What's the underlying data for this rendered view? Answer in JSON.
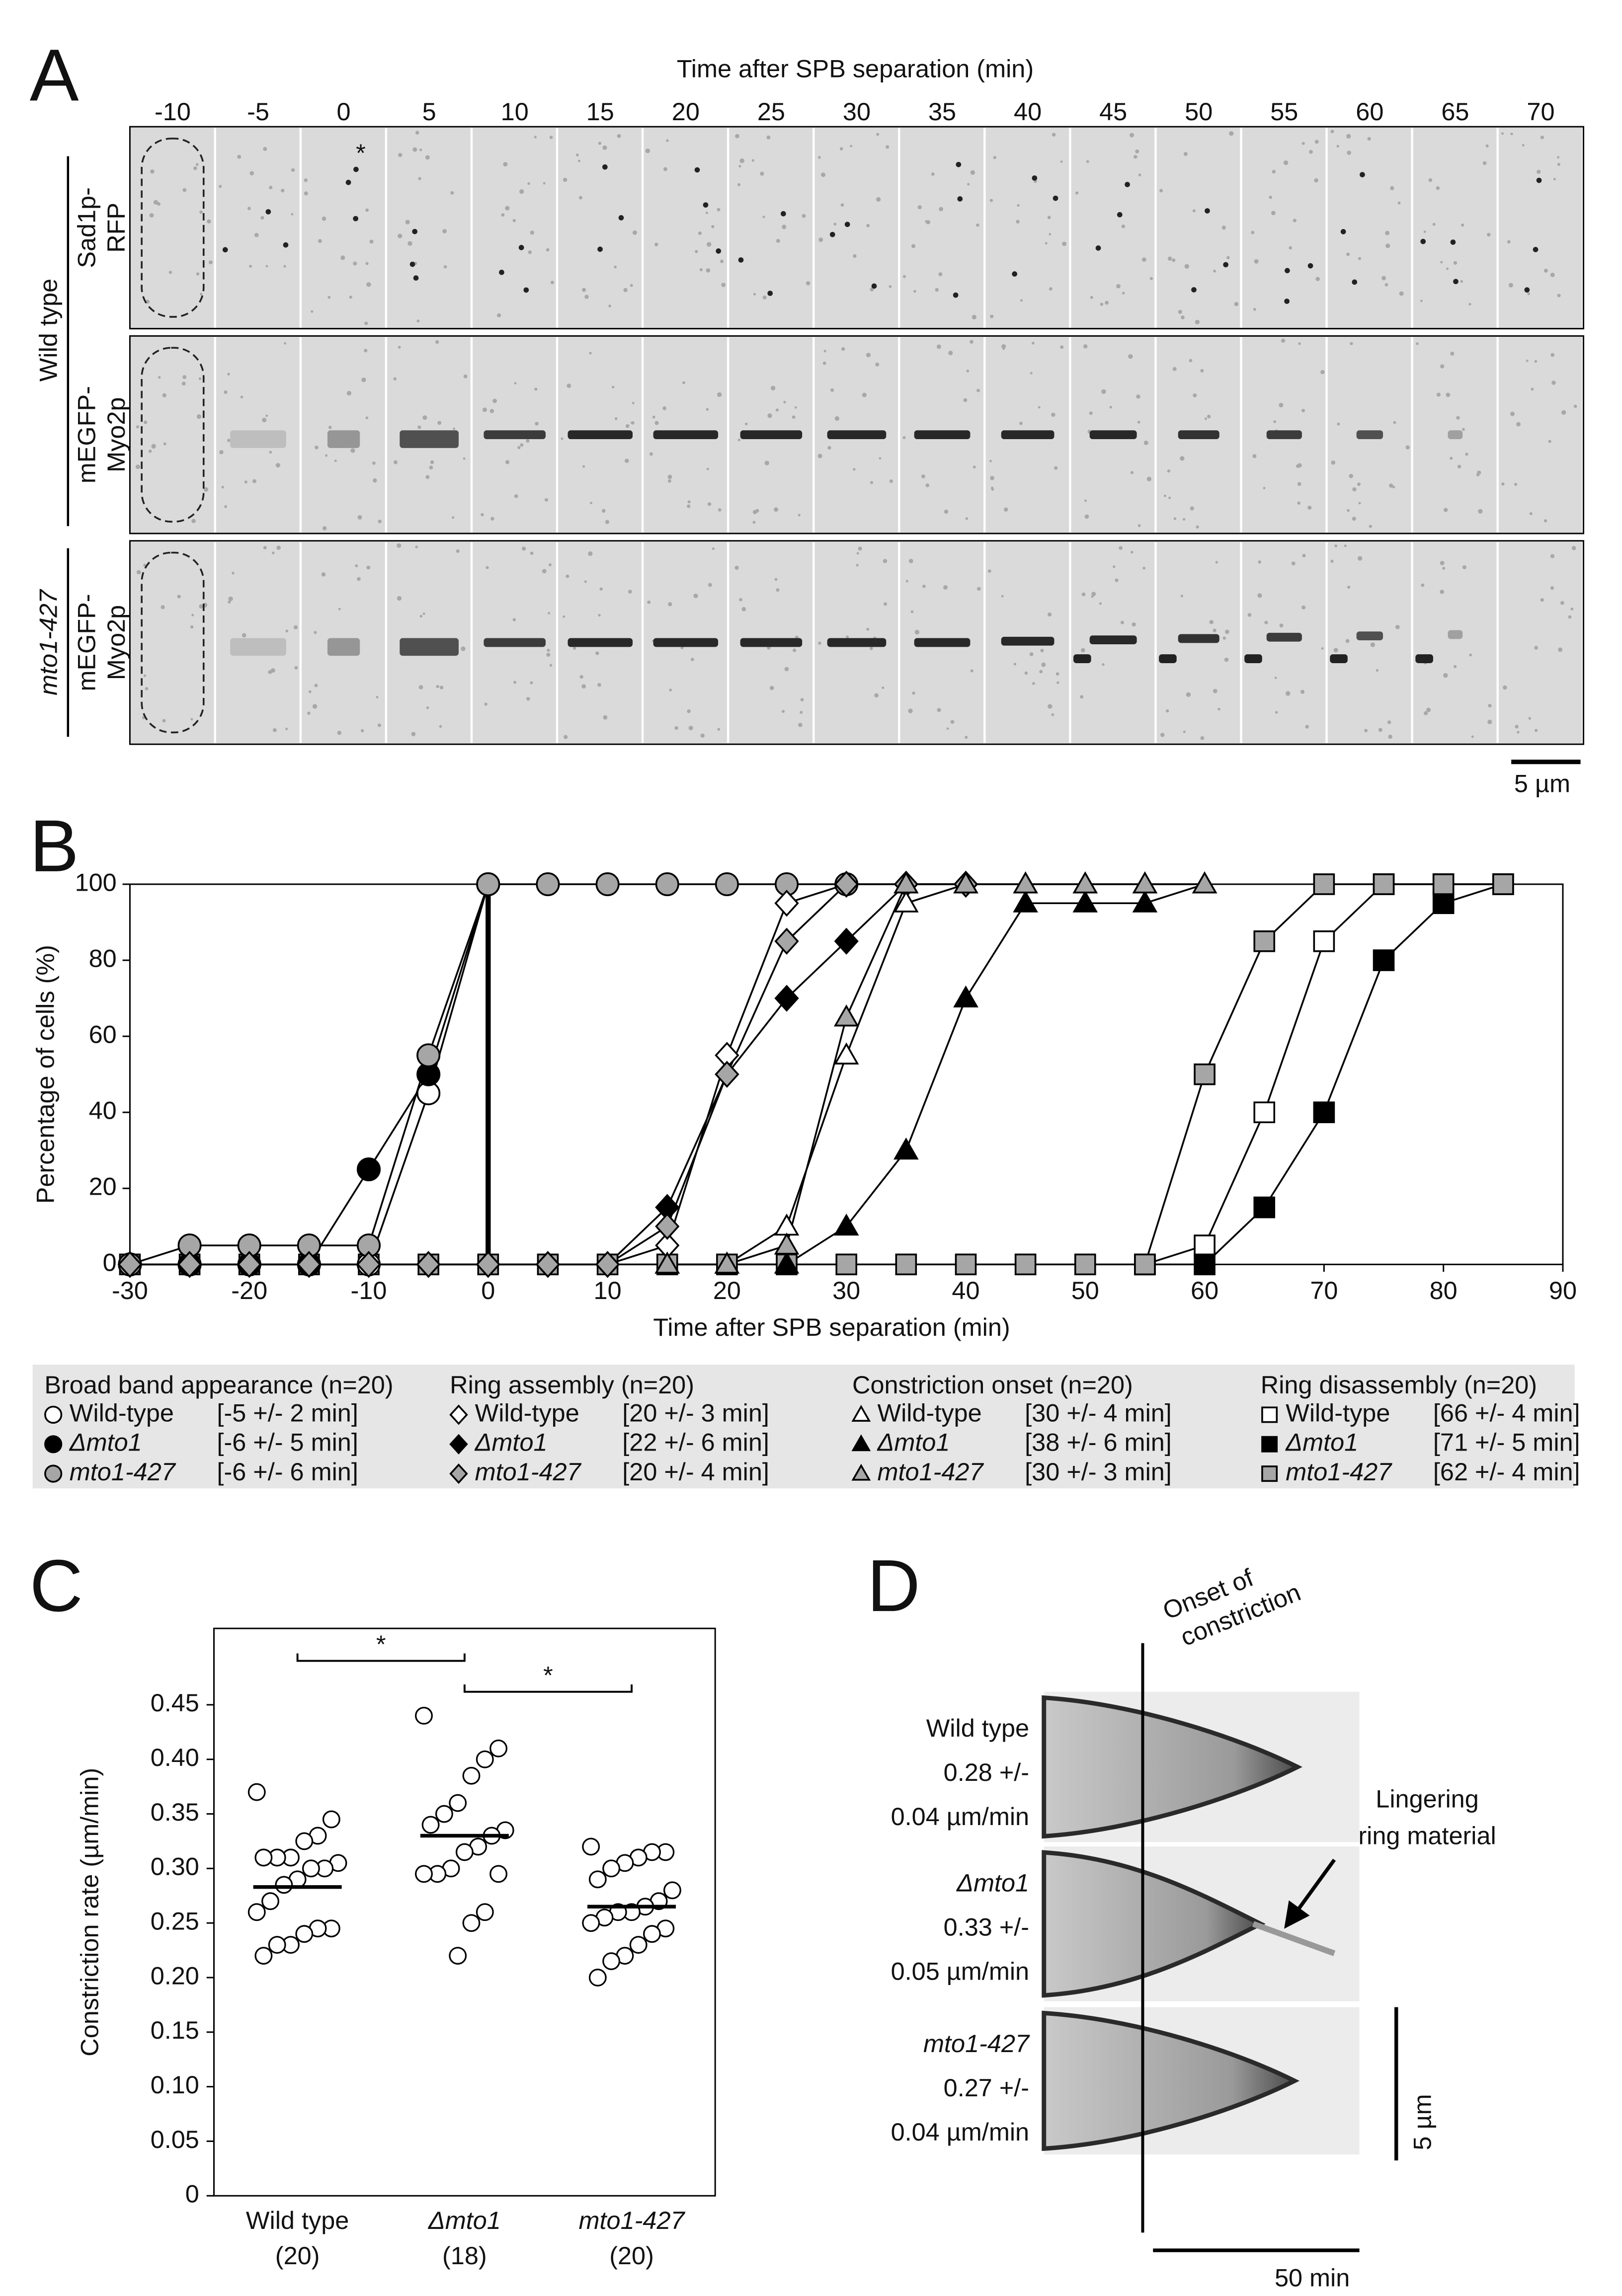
{
  "panel_a": {
    "label": "A",
    "title": "Time after SPB separation (min)",
    "times": [
      -10,
      -5,
      0,
      5,
      10,
      15,
      20,
      25,
      30,
      35,
      40,
      45,
      50,
      55,
      60,
      65,
      70
    ],
    "star": "*",
    "groups": [
      {
        "name": "Wild type",
        "italic": false
      },
      {
        "name": "mto1-427",
        "italic": true
      }
    ],
    "rows": [
      {
        "label": [
          "Sad1p-",
          "RFP"
        ]
      },
      {
        "label": [
          "mEGFP-",
          "Myo2p"
        ]
      },
      {
        "label": [
          "mEGFP-",
          "Myo2p"
        ]
      }
    ],
    "scale_bar": "5 µm"
  },
  "chart_data": [
    {
      "type": "line",
      "panel_label": "B",
      "xlabel": "Time after SPB separation (min)",
      "ylabel": "Percentage of cells (%)",
      "xlim": [
        -30,
        90
      ],
      "ylim": [
        0,
        100
      ],
      "xticks": [
        -30,
        -20,
        -10,
        0,
        10,
        20,
        30,
        40,
        50,
        60,
        70,
        80,
        90
      ],
      "yticks": [
        0,
        20,
        40,
        60,
        80,
        100
      ],
      "vline_x": 0,
      "groups": [
        {
          "title": "Broad band appearance (n=20)",
          "marker": "circle",
          "series": [
            {
              "name": "Wild-type",
              "italic": false,
              "color": "#ffffff",
              "stat": "[-5 +/- 2 min]",
              "x": [
                -30,
                -25,
                -20,
                -15,
                -10,
                -5,
                0
              ],
              "values": [
                0,
                0,
                0,
                0,
                0,
                45,
                100
              ]
            },
            {
              "name": "Δmto1",
              "italic": true,
              "color": "#000000",
              "stat": "[-6 +/- 5 min]",
              "x": [
                -30,
                -25,
                -20,
                -15,
                -10,
                -5,
                0
              ],
              "values": [
                0,
                0,
                0,
                0,
                25,
                50,
                100
              ]
            },
            {
              "name": "mto1-427",
              "italic": true,
              "color": "#a6a6a6",
              "stat": "[-6 +/- 6 min]",
              "x": [
                -30,
                -25,
                -20,
                -15,
                -10,
                -5,
                0,
                5,
                10,
                15,
                20,
                25,
                30
              ],
              "values": [
                0,
                5,
                5,
                5,
                5,
                55,
                100,
                100,
                100,
                100,
                100,
                100,
                100
              ]
            }
          ]
        },
        {
          "title": "Ring assembly (n=20)",
          "marker": "diamond",
          "series": [
            {
              "name": "Wild-type",
              "italic": false,
              "color": "#ffffff",
              "stat": "[20 +/- 3 min]",
              "x": [
                -30,
                -25,
                -20,
                -15,
                -10,
                -5,
                0,
                5,
                10,
                15,
                20,
                25,
                30,
                35,
                40
              ],
              "values": [
                0,
                0,
                0,
                0,
                0,
                0,
                0,
                0,
                0,
                5,
                55,
                95,
                100,
                100,
                100
              ]
            },
            {
              "name": "Δmto1",
              "italic": true,
              "color": "#000000",
              "stat": "[22 +/- 6 min]",
              "x": [
                -30,
                -25,
                -20,
                -15,
                -10,
                -5,
                0,
                5,
                10,
                15,
                20,
                25,
                30,
                35,
                40
              ],
              "values": [
                0,
                0,
                0,
                0,
                0,
                0,
                0,
                0,
                0,
                15,
                50,
                70,
                85,
                100,
                100
              ]
            },
            {
              "name": "mto1-427",
              "italic": true,
              "color": "#a6a6a6",
              "stat": "[20 +/- 4 min]",
              "x": [
                -30,
                -25,
                -20,
                -15,
                -10,
                -5,
                0,
                5,
                10,
                15,
                20,
                25,
                30,
                35,
                40
              ],
              "values": [
                0,
                0,
                0,
                0,
                0,
                0,
                0,
                0,
                0,
                10,
                50,
                85,
                100,
                100,
                100
              ]
            }
          ]
        },
        {
          "title": "Constriction onset (n=20)",
          "marker": "triangle",
          "series": [
            {
              "name": "Wild-type",
              "italic": false,
              "color": "#ffffff",
              "stat": "[30 +/- 4 min]",
              "x": [
                15,
                20,
                25,
                30,
                35,
                40,
                45,
                50,
                55,
                60
              ],
              "values": [
                0,
                0,
                10,
                55,
                95,
                100,
                100,
                100,
                100,
                100
              ]
            },
            {
              "name": "Δmto1",
              "italic": true,
              "color": "#000000",
              "stat": "[38 +/- 6 min]",
              "x": [
                15,
                20,
                25,
                30,
                35,
                40,
                45,
                50,
                55,
                60
              ],
              "values": [
                0,
                0,
                0,
                10,
                30,
                70,
                95,
                95,
                95,
                100
              ]
            },
            {
              "name": "mto1-427",
              "italic": true,
              "color": "#a6a6a6",
              "stat": "[30 +/- 3 min]",
              "x": [
                15,
                20,
                25,
                30,
                35,
                40,
                45,
                50,
                55,
                60
              ],
              "values": [
                0,
                0,
                5,
                65,
                100,
                100,
                100,
                100,
                100,
                100
              ]
            }
          ]
        },
        {
          "title": "Ring disassembly (n=20)",
          "marker": "square",
          "series": [
            {
              "name": "Wild-type",
              "italic": false,
              "color": "#ffffff",
              "stat": "[66 +/- 4 min]",
              "x": [
                55,
                60,
                65,
                70,
                75,
                80,
                85
              ],
              "values": [
                0,
                5,
                40,
                85,
                100,
                100,
                100
              ]
            },
            {
              "name": "Δmto1",
              "italic": true,
              "color": "#000000",
              "stat": "[71 +/- 5 min]",
              "x": [
                55,
                60,
                65,
                70,
                75,
                80,
                85
              ],
              "values": [
                0,
                0,
                15,
                40,
                80,
                95,
                100
              ]
            },
            {
              "name": "mto1-427",
              "italic": true,
              "color": "#a6a6a6",
              "stat": "[62 +/- 4 min]",
              "x": [
                -30,
                -25,
                -20,
                -15,
                -10,
                -5,
                0,
                5,
                10,
                15,
                20,
                25,
                30,
                35,
                40,
                45,
                50,
                55,
                60,
                65,
                70,
                75,
                80,
                85
              ],
              "values": [
                0,
                0,
                0,
                0,
                0,
                0,
                0,
                0,
                0,
                0,
                0,
                0,
                0,
                0,
                0,
                0,
                0,
                0,
                50,
                85,
                100,
                100,
                100,
                100
              ]
            }
          ]
        }
      ]
    },
    {
      "type": "strip",
      "panel_label": "C",
      "ylabel": "Constriction rate (µm/min)",
      "ylim": [
        0,
        0.52
      ],
      "yticks": [
        0,
        0.05,
        {
          "value": 0.1,
          "label": "0.10"
        },
        0.15,
        {
          "value": 0.2,
          "label": "0.20"
        },
        0.25,
        {
          "value": 0.3,
          "label": "0.30"
        },
        0.35,
        {
          "value": 0.4,
          "label": "0.40"
        },
        0.45
      ],
      "categories": [
        "Wild type",
        "Δmto1",
        "mto1-427"
      ],
      "italic": [
        false,
        true,
        true
      ],
      "counts": [
        "(20)",
        "(18)",
        "(20)"
      ],
      "series": [
        {
          "values": [
            0.37,
            0.345,
            0.33,
            0.325,
            0.31,
            0.31,
            0.31,
            0.305,
            0.3,
            0.3,
            0.29,
            0.285,
            0.27,
            0.26,
            0.245,
            0.245,
            0.24,
            0.23,
            0.23,
            0.22
          ],
          "mean": 0.283
        },
        {
          "values": [
            0.44,
            0.41,
            0.4,
            0.385,
            0.36,
            0.35,
            0.34,
            0.335,
            0.33,
            0.32,
            0.315,
            0.3,
            0.295,
            0.295,
            0.295,
            0.26,
            0.25,
            0.22
          ],
          "mean": 0.33
        },
        {
          "values": [
            0.32,
            0.315,
            0.315,
            0.31,
            0.305,
            0.3,
            0.29,
            0.28,
            0.27,
            0.265,
            0.26,
            0.26,
            0.255,
            0.25,
            0.245,
            0.24,
            0.23,
            0.22,
            0.215,
            0.2
          ],
          "mean": 0.265
        }
      ],
      "significance": [
        "*",
        "*"
      ]
    }
  ],
  "panel_d": {
    "label": "D",
    "onset": [
      "Onset of",
      "constriction"
    ],
    "rows": [
      {
        "name": "Wild type",
        "italic": false,
        "lines": [
          "0.28 +/-",
          "0.04 µm/min"
        ]
      },
      {
        "name": "Δmto1",
        "italic": true,
        "lines": [
          "0.33 +/-",
          "0.05 µm/min"
        ]
      },
      {
        "name": "mto1-427",
        "italic": true,
        "lines": [
          "0.27 +/-",
          "0.04 µm/min"
        ]
      }
    ],
    "lingering": [
      "Lingering",
      "ring material"
    ],
    "scale_y": "5 µm",
    "scale_x": "50 min"
  }
}
